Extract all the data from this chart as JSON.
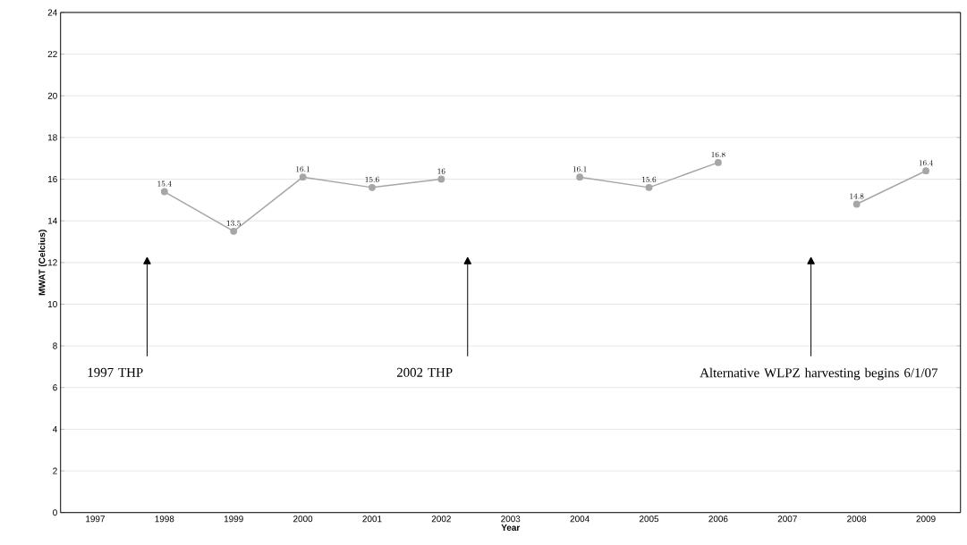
{
  "chart_data": {
    "type": "line",
    "xlabel": "Year",
    "ylabel": "MWAT (Celcius)",
    "categories": [
      "1997",
      "1998",
      "1999",
      "2000",
      "2001",
      "2002",
      "2003",
      "2004",
      "2005",
      "2006",
      "2007",
      "2008",
      "2009"
    ],
    "values": [
      null,
      15.4,
      13.5,
      16.1,
      15.6,
      16,
      null,
      16.1,
      15.6,
      16.8,
      null,
      14.8,
      16.4
    ],
    "color": "#a6a6a6",
    "marker": "circle",
    "data_labels": true,
    "grid": "y",
    "ylim": [
      0,
      24
    ],
    "yticks": [
      0,
      2,
      4,
      6,
      8,
      10,
      12,
      14,
      16,
      18,
      20,
      22,
      24
    ],
    "annotations": [
      "1997 THP",
      "2002 THP",
      "Alternative WLPZ harvesting begins 6/1/07"
    ]
  }
}
